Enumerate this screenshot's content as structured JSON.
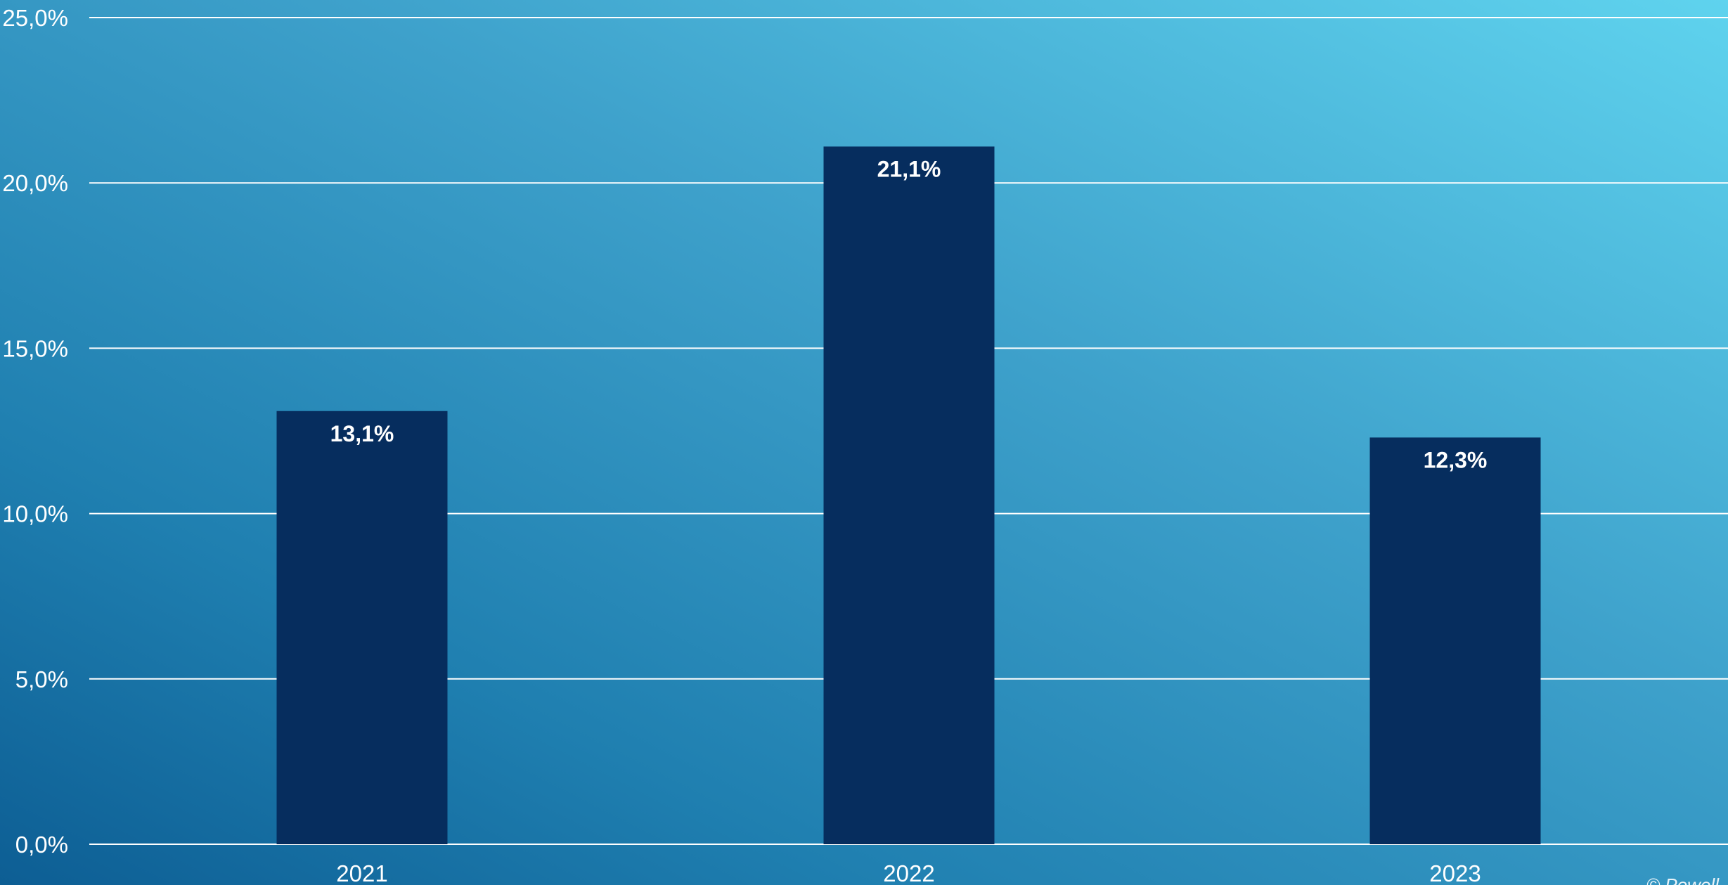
{
  "chart_data": {
    "type": "bar",
    "title": "",
    "xlabel": "",
    "ylabel": "",
    "categories": [
      "2021",
      "2022",
      "2023"
    ],
    "values": [
      13.1,
      21.1,
      12.3
    ],
    "data_labels": [
      "13,1%",
      "21,1%",
      "12,3%"
    ],
    "ylim": [
      0,
      25
    ],
    "yticks": [
      0,
      5,
      10,
      15,
      20,
      25
    ],
    "ytick_labels": [
      "0,0%",
      "5,0%",
      "10,0%",
      "15,0%",
      "20,0%",
      "25,0%"
    ],
    "grid": true,
    "legend": "none",
    "bar_color": "#062d5e",
    "grid_color": "#ffffff",
    "text_color": "#ffffff"
  },
  "watermark": "© Powell"
}
